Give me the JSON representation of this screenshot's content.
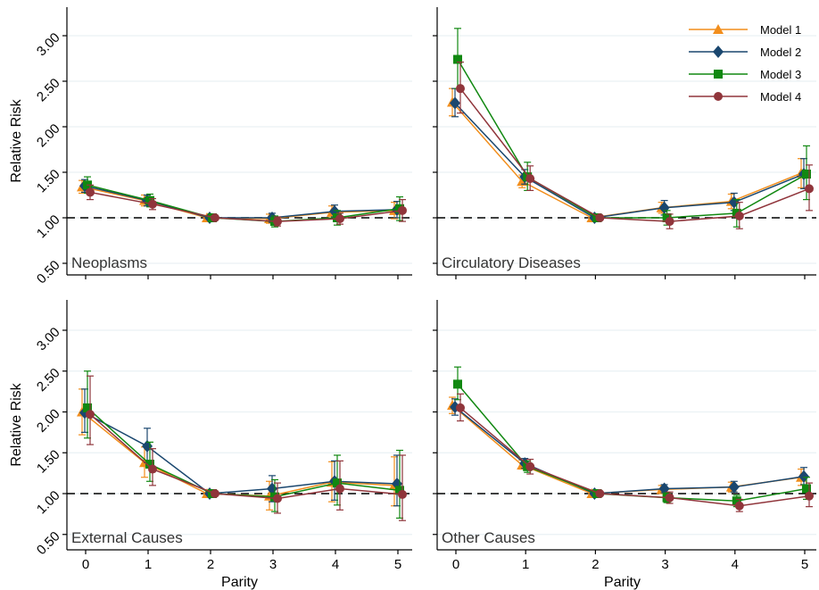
{
  "figure": {
    "legend": {
      "placement": "top-right of top-right panel",
      "entries": [
        "Model 1",
        "Model 2",
        "Model 3",
        "Model 4"
      ]
    }
  },
  "chart_data": [
    {
      "type": "line",
      "panel_label": "Neoplasms",
      "xlabel": "",
      "ylabel": "Relative Risk",
      "x": [
        0,
        1,
        2,
        3,
        4,
        5
      ],
      "xlim": [
        -0.25,
        5.2
      ],
      "ylim": [
        0.45,
        3.3
      ],
      "yticks": [
        "0.50",
        "1.00",
        "1.50",
        "2.00",
        "2.50",
        "3.00"
      ],
      "xticks": [],
      "reference_line": 1.0,
      "series": [
        {
          "name": "Model 1",
          "values": [
            1.34,
            1.19,
            1.0,
            0.99,
            1.06,
            1.08
          ],
          "lower": [
            1.27,
            1.13,
            1.0,
            0.94,
            1.0,
            0.99
          ],
          "upper": [
            1.41,
            1.25,
            1.0,
            1.04,
            1.13,
            1.17
          ]
        },
        {
          "name": "Model 2",
          "values": [
            1.35,
            1.19,
            1.0,
            1.0,
            1.07,
            1.09
          ],
          "lower": [
            1.28,
            1.13,
            1.0,
            0.95,
            1.01,
            1.0
          ],
          "upper": [
            1.42,
            1.25,
            1.0,
            1.05,
            1.14,
            1.18
          ]
        },
        {
          "name": "Model 3",
          "values": [
            1.36,
            1.19,
            1.0,
            0.96,
            1.0,
            1.1
          ],
          "lower": [
            1.27,
            1.12,
            1.0,
            0.9,
            0.92,
            0.97
          ],
          "upper": [
            1.45,
            1.26,
            1.0,
            1.02,
            1.08,
            1.23
          ]
        },
        {
          "name": "Model 4",
          "values": [
            1.28,
            1.15,
            1.0,
            0.96,
            0.99,
            1.08
          ],
          "lower": [
            1.2,
            1.09,
            1.0,
            0.91,
            0.93,
            0.96
          ],
          "upper": [
            1.36,
            1.21,
            1.0,
            1.01,
            1.05,
            1.2
          ]
        }
      ]
    },
    {
      "type": "line",
      "panel_label": "Circulatory Diseases",
      "xlabel": "",
      "ylabel": "",
      "x": [
        0,
        1,
        2,
        3,
        4,
        5
      ],
      "xlim": [
        -0.25,
        5.2
      ],
      "ylim": [
        0.45,
        3.3
      ],
      "yticks": [],
      "xticks": [],
      "reference_line": 1.0,
      "series": [
        {
          "name": "Model 1",
          "values": [
            2.27,
            1.4,
            1.0,
            1.11,
            1.18,
            1.49
          ],
          "lower": [
            2.12,
            1.33,
            1.0,
            1.05,
            1.1,
            1.33
          ],
          "upper": [
            2.42,
            1.47,
            1.0,
            1.17,
            1.26,
            1.65
          ]
        },
        {
          "name": "Model 2",
          "values": [
            2.26,
            1.45,
            1.0,
            1.11,
            1.17,
            1.48
          ],
          "lower": [
            2.11,
            1.37,
            1.0,
            1.03,
            1.08,
            1.32
          ],
          "upper": [
            2.42,
            1.53,
            1.0,
            1.19,
            1.27,
            1.65
          ]
        },
        {
          "name": "Model 3",
          "values": [
            2.74,
            1.45,
            1.0,
            1.0,
            1.05,
            1.48
          ],
          "lower": [
            2.42,
            1.3,
            1.0,
            0.92,
            0.9,
            1.2
          ],
          "upper": [
            3.08,
            1.61,
            1.0,
            1.08,
            1.2,
            1.79
          ]
        },
        {
          "name": "Model 4",
          "values": [
            2.42,
            1.43,
            1.0,
            0.96,
            1.02,
            1.32
          ],
          "lower": [
            2.15,
            1.3,
            1.0,
            0.88,
            0.88,
            1.08
          ],
          "upper": [
            2.71,
            1.57,
            1.0,
            1.04,
            1.17,
            1.58
          ]
        }
      ]
    },
    {
      "type": "line",
      "panel_label": "External Causes",
      "xlabel": "Parity",
      "ylabel": "Relative Risk",
      "x": [
        0,
        1,
        2,
        3,
        4,
        5
      ],
      "xlim": [
        -0.25,
        5.2
      ],
      "ylim": [
        0.45,
        3.3
      ],
      "yticks": [
        "0.50",
        "1.00",
        "1.50",
        "2.00",
        "2.50",
        "3.00"
      ],
      "xticks": [
        "0",
        "1",
        "2",
        "3",
        "4",
        "5"
      ],
      "reference_line": 1.0,
      "series": [
        {
          "name": "Model 1",
          "values": [
            2.0,
            1.38,
            1.0,
            0.97,
            1.14,
            1.1
          ],
          "lower": [
            1.72,
            1.2,
            1.0,
            0.8,
            0.9,
            0.85
          ],
          "upper": [
            2.28,
            1.57,
            1.0,
            1.15,
            1.39,
            1.45
          ]
        },
        {
          "name": "Model 2",
          "values": [
            1.99,
            1.58,
            1.0,
            1.06,
            1.15,
            1.12
          ],
          "lower": [
            1.75,
            1.38,
            1.0,
            0.9,
            0.92,
            0.85
          ],
          "upper": [
            2.28,
            1.8,
            1.0,
            1.22,
            1.4,
            1.47
          ]
        },
        {
          "name": "Model 3",
          "values": [
            2.05,
            1.36,
            1.0,
            0.96,
            1.13,
            1.04
          ],
          "lower": [
            1.68,
            1.15,
            1.0,
            0.78,
            0.86,
            0.7
          ],
          "upper": [
            2.5,
            1.63,
            1.0,
            1.17,
            1.47,
            1.53
          ]
        },
        {
          "name": "Model 4",
          "values": [
            1.97,
            1.3,
            1.0,
            0.94,
            1.06,
            0.99
          ],
          "lower": [
            1.6,
            1.1,
            1.0,
            0.76,
            0.8,
            0.67
          ],
          "upper": [
            2.44,
            1.55,
            1.0,
            1.13,
            1.4,
            1.47
          ]
        }
      ]
    },
    {
      "type": "line",
      "panel_label": "Other Causes",
      "xlabel": "Parity",
      "ylabel": "",
      "x": [
        0,
        1,
        2,
        3,
        4,
        5
      ],
      "xlim": [
        -0.25,
        5.2
      ],
      "ylim": [
        0.45,
        3.3
      ],
      "yticks": [],
      "xticks": [
        "0",
        "1",
        "2",
        "3",
        "4",
        "5"
      ],
      "reference_line": 1.0,
      "series": [
        {
          "name": "Model 1",
          "values": [
            2.08,
            1.35,
            1.0,
            1.05,
            1.08,
            1.2
          ],
          "lower": [
            1.98,
            1.3,
            1.0,
            1.0,
            1.02,
            1.1
          ],
          "upper": [
            2.18,
            1.41,
            1.0,
            1.1,
            1.14,
            1.3
          ]
        },
        {
          "name": "Model 2",
          "values": [
            2.06,
            1.37,
            1.0,
            1.06,
            1.08,
            1.21
          ],
          "lower": [
            1.96,
            1.31,
            1.0,
            1.01,
            1.02,
            1.11
          ],
          "upper": [
            2.16,
            1.43,
            1.0,
            1.11,
            1.15,
            1.32
          ]
        },
        {
          "name": "Model 3",
          "values": [
            2.34,
            1.33,
            1.0,
            0.95,
            0.91,
            1.06
          ],
          "lower": [
            2.15,
            1.26,
            1.0,
            0.89,
            0.84,
            0.93
          ],
          "upper": [
            2.55,
            1.4,
            1.0,
            1.01,
            0.98,
            1.2
          ]
        },
        {
          "name": "Model 4",
          "values": [
            2.05,
            1.33,
            1.0,
            0.95,
            0.85,
            0.97
          ],
          "lower": [
            1.89,
            1.24,
            1.0,
            0.88,
            0.78,
            0.84
          ],
          "upper": [
            2.22,
            1.42,
            1.0,
            1.02,
            0.93,
            1.13
          ]
        }
      ]
    }
  ],
  "style": {
    "colors": {
      "Model 1": "#f28e1c",
      "Model 2": "#1a476f",
      "Model 3": "#118811",
      "Model 4": "#90353b"
    },
    "markers": {
      "Model 1": "triangle",
      "Model 2": "diamond",
      "Model 3": "square",
      "Model 4": "circle"
    },
    "grid": true,
    "grid_color": "#eaf1f4",
    "reference_line_style": "dashed black"
  }
}
